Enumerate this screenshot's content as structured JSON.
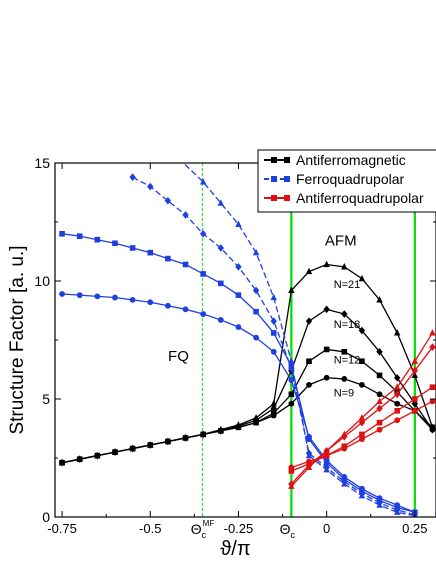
{
  "chart_data": {
    "type": "line",
    "title": "",
    "xlabel": "ϑ/π",
    "ylabel": "Structure Factor [a. u.]",
    "xlim": [
      -0.77,
      0.31
    ],
    "ylim": [
      0,
      15
    ],
    "x_ticks": [
      {
        "value": -0.75,
        "label": "-0.75"
      },
      {
        "value": -0.5,
        "label": "-0.5"
      },
      {
        "value": -0.25,
        "label": "-0.25"
      },
      {
        "value": 0,
        "label": "0"
      },
      {
        "value": 0.25,
        "label": "0.25"
      }
    ],
    "y_ticks": [
      0,
      5,
      10,
      15
    ],
    "special_ticks": [
      {
        "value": -0.352,
        "symbol": "Θ",
        "sub": "c",
        "sup": "MF"
      },
      {
        "value": -0.1,
        "symbol": "Θ",
        "sub": "c",
        "sup": ""
      }
    ],
    "vlines": [
      {
        "x": -0.352,
        "color": "#33dd33",
        "style": "dashed"
      },
      {
        "x": -0.1,
        "color": "#00dd00",
        "style": "solid"
      },
      {
        "x": 0.25,
        "color": "#00dd00",
        "style": "solid"
      }
    ],
    "legend": {
      "placement": "top-right",
      "entries": [
        {
          "label": "Antiferromagnetic",
          "color": "#000000",
          "style": "solid"
        },
        {
          "label": "Ferroquadrupolar",
          "color": "#1f3fe0",
          "style": "dashed"
        },
        {
          "label": "Antiferroquadrupolar",
          "color": "#e01010",
          "style": "solid"
        }
      ]
    },
    "annotations": [
      {
        "text": "AFM",
        "x": 0.04,
        "y": 11.5,
        "size": "large"
      },
      {
        "text": "FQ",
        "x": -0.42,
        "y": 6.6,
        "size": "large"
      },
      {
        "text": "N=21",
        "x": 0.02,
        "y": 9.7,
        "size": "small"
      },
      {
        "text": "N=18",
        "x": 0.02,
        "y": 8.0,
        "size": "small"
      },
      {
        "text": "N=12",
        "x": 0.02,
        "y": 6.5,
        "size": "small"
      },
      {
        "text": "N=9",
        "x": 0.02,
        "y": 5.1,
        "size": "small"
      }
    ],
    "series": [
      {
        "group": "Antiferromagnetic",
        "N": 9,
        "marker": "circle",
        "color": "#000000",
        "dash": "",
        "x": [
          -0.75,
          -0.7,
          -0.65,
          -0.6,
          -0.55,
          -0.5,
          -0.45,
          -0.4,
          -0.35,
          -0.3,
          -0.25,
          -0.2,
          -0.15,
          -0.1,
          -0.05,
          0,
          0.05,
          0.1,
          0.15,
          0.2,
          0.25,
          0.3
        ],
        "y": [
          2.3,
          2.45,
          2.6,
          2.75,
          2.9,
          3.05,
          3.2,
          3.35,
          3.5,
          3.65,
          3.8,
          4.0,
          4.3,
          4.8,
          5.6,
          5.9,
          5.85,
          5.6,
          5.2,
          4.8,
          4.5,
          3.7
        ]
      },
      {
        "group": "Antiferromagnetic",
        "N": 12,
        "marker": "square",
        "color": "#000000",
        "dash": "",
        "x": [
          -0.75,
          -0.7,
          -0.65,
          -0.6,
          -0.55,
          -0.5,
          -0.45,
          -0.4,
          -0.35,
          -0.3,
          -0.25,
          -0.2,
          -0.15,
          -0.1,
          -0.05,
          0,
          0.05,
          0.1,
          0.15,
          0.2,
          0.25,
          0.3
        ],
        "y": [
          2.3,
          2.45,
          2.6,
          2.75,
          2.9,
          3.05,
          3.2,
          3.35,
          3.5,
          3.65,
          3.8,
          4.0,
          4.4,
          5.2,
          6.6,
          7.1,
          7.0,
          6.6,
          6.0,
          5.3,
          4.5,
          3.8
        ]
      },
      {
        "group": "Antiferromagnetic",
        "N": 18,
        "marker": "diamond",
        "color": "#000000",
        "dash": "",
        "x": [
          -0.75,
          -0.7,
          -0.65,
          -0.6,
          -0.55,
          -0.5,
          -0.45,
          -0.4,
          -0.35,
          -0.3,
          -0.25,
          -0.2,
          -0.15,
          -0.1,
          -0.05,
          0,
          0.05,
          0.1,
          0.15,
          0.2,
          0.25,
          0.3
        ],
        "y": [
          2.3,
          2.45,
          2.6,
          2.75,
          2.9,
          3.05,
          3.2,
          3.35,
          3.5,
          3.65,
          3.85,
          4.1,
          4.6,
          6.2,
          8.3,
          8.8,
          8.6,
          7.9,
          7.0,
          5.9,
          4.8,
          3.7
        ]
      },
      {
        "group": "Antiferromagnetic",
        "N": 21,
        "marker": "triangle",
        "color": "#000000",
        "dash": "",
        "x": [
          -0.75,
          -0.7,
          -0.65,
          -0.6,
          -0.55,
          -0.5,
          -0.45,
          -0.4,
          -0.35,
          -0.3,
          -0.25,
          -0.2,
          -0.15,
          -0.1,
          -0.05,
          0,
          0.05,
          0.1,
          0.15,
          0.2,
          0.25,
          0.3
        ],
        "y": [
          2.3,
          2.45,
          2.6,
          2.75,
          2.9,
          3.05,
          3.2,
          3.35,
          3.5,
          3.7,
          3.9,
          4.2,
          4.8,
          9.6,
          10.4,
          10.7,
          10.6,
          10.1,
          9.2,
          7.8,
          6.0,
          3.8
        ]
      },
      {
        "group": "Ferroquadrupolar",
        "N": 9,
        "marker": "circle",
        "color": "#1f3fe0",
        "dash": "",
        "x": [
          -0.75,
          -0.7,
          -0.65,
          -0.6,
          -0.55,
          -0.5,
          -0.45,
          -0.4,
          -0.35,
          -0.3,
          -0.25,
          -0.2,
          -0.15,
          -0.1,
          -0.05,
          0,
          0.05,
          0.1,
          0.15,
          0.2,
          0.25
        ],
        "y": [
          9.45,
          9.4,
          9.35,
          9.3,
          9.2,
          9.1,
          8.95,
          8.8,
          8.6,
          8.35,
          8.05,
          7.6,
          7.0,
          5.8,
          3.4,
          2.4,
          1.7,
          1.2,
          0.8,
          0.5,
          0.2
        ]
      },
      {
        "group": "Ferroquadrupolar",
        "N": 12,
        "marker": "square",
        "color": "#1f3fe0",
        "dash": "",
        "x": [
          -0.75,
          -0.7,
          -0.65,
          -0.6,
          -0.55,
          -0.5,
          -0.45,
          -0.4,
          -0.35,
          -0.3,
          -0.25,
          -0.2,
          -0.15,
          -0.1,
          -0.05,
          0,
          0.05,
          0.1,
          0.15,
          0.2,
          0.25
        ],
        "y": [
          12.0,
          11.9,
          11.75,
          11.6,
          11.4,
          11.2,
          10.95,
          10.7,
          10.3,
          9.9,
          9.4,
          8.7,
          7.8,
          6.4,
          3.3,
          2.3,
          1.6,
          1.1,
          0.7,
          0.4,
          0.2
        ]
      },
      {
        "group": "Ferroquadrupolar",
        "N": 18,
        "marker": "diamond",
        "color": "#1f3fe0",
        "dash": "6,3",
        "x": [
          -0.55,
          -0.5,
          -0.45,
          -0.4,
          -0.35,
          -0.3,
          -0.25,
          -0.2,
          -0.15,
          -0.1,
          -0.05,
          0,
          0.05,
          0.1,
          0.15,
          0.2,
          0.25
        ],
        "y": [
          14.4,
          14.0,
          13.4,
          12.8,
          12.0,
          11.4,
          10.6,
          9.6,
          8.3,
          6.3,
          2.7,
          2.1,
          1.5,
          1.0,
          0.6,
          0.3,
          0.1
        ]
      },
      {
        "group": "Ferroquadrupolar",
        "N": 21,
        "marker": "triangle",
        "color": "#1f3fe0",
        "dash": "6,3",
        "x": [
          -0.42,
          -0.35,
          -0.3,
          -0.25,
          -0.2,
          -0.15,
          -0.1,
          -0.05,
          0,
          0.05,
          0.1,
          0.15,
          0.2,
          0.25
        ],
        "y": [
          15.2,
          14.2,
          13.3,
          12.4,
          11.2,
          9.3,
          6.6,
          2.6,
          2.0,
          1.4,
          0.9,
          0.5,
          0.2,
          0.05
        ]
      },
      {
        "group": "Antiferroquadrupolar",
        "N": 9,
        "marker": "circle",
        "color": "#e01010",
        "dash": "",
        "x": [
          -0.1,
          -0.05,
          0,
          0.05,
          0.1,
          0.15,
          0.2,
          0.25,
          0.3
        ],
        "y": [
          2.1,
          2.35,
          2.6,
          2.9,
          3.3,
          3.7,
          4.1,
          4.5,
          4.9
        ]
      },
      {
        "group": "Antiferroquadrupolar",
        "N": 12,
        "marker": "square",
        "color": "#e01010",
        "dash": "",
        "x": [
          -0.1,
          -0.05,
          0,
          0.05,
          0.1,
          0.15,
          0.2,
          0.25,
          0.3
        ],
        "y": [
          1.95,
          2.25,
          2.6,
          3.0,
          3.5,
          4.0,
          4.5,
          5.0,
          5.5
        ]
      },
      {
        "group": "Antiferroquadrupolar",
        "N": 18,
        "marker": "diamond",
        "color": "#e01010",
        "dash": "",
        "x": [
          -0.1,
          -0.05,
          0,
          0.05,
          0.1,
          0.15,
          0.2,
          0.25,
          0.3
        ],
        "y": [
          1.4,
          2.2,
          2.8,
          3.4,
          4.0,
          4.6,
          5.2,
          6.2,
          7.2
        ]
      },
      {
        "group": "Antiferroquadrupolar",
        "N": 21,
        "marker": "triangle",
        "color": "#e01010",
        "dash": "",
        "x": [
          -0.1,
          -0.05,
          0,
          0.05,
          0.1,
          0.15,
          0.2,
          0.25,
          0.3
        ],
        "y": [
          1.3,
          2.1,
          2.8,
          3.5,
          4.2,
          4.9,
          5.5,
          6.6,
          7.8
        ]
      }
    ]
  }
}
